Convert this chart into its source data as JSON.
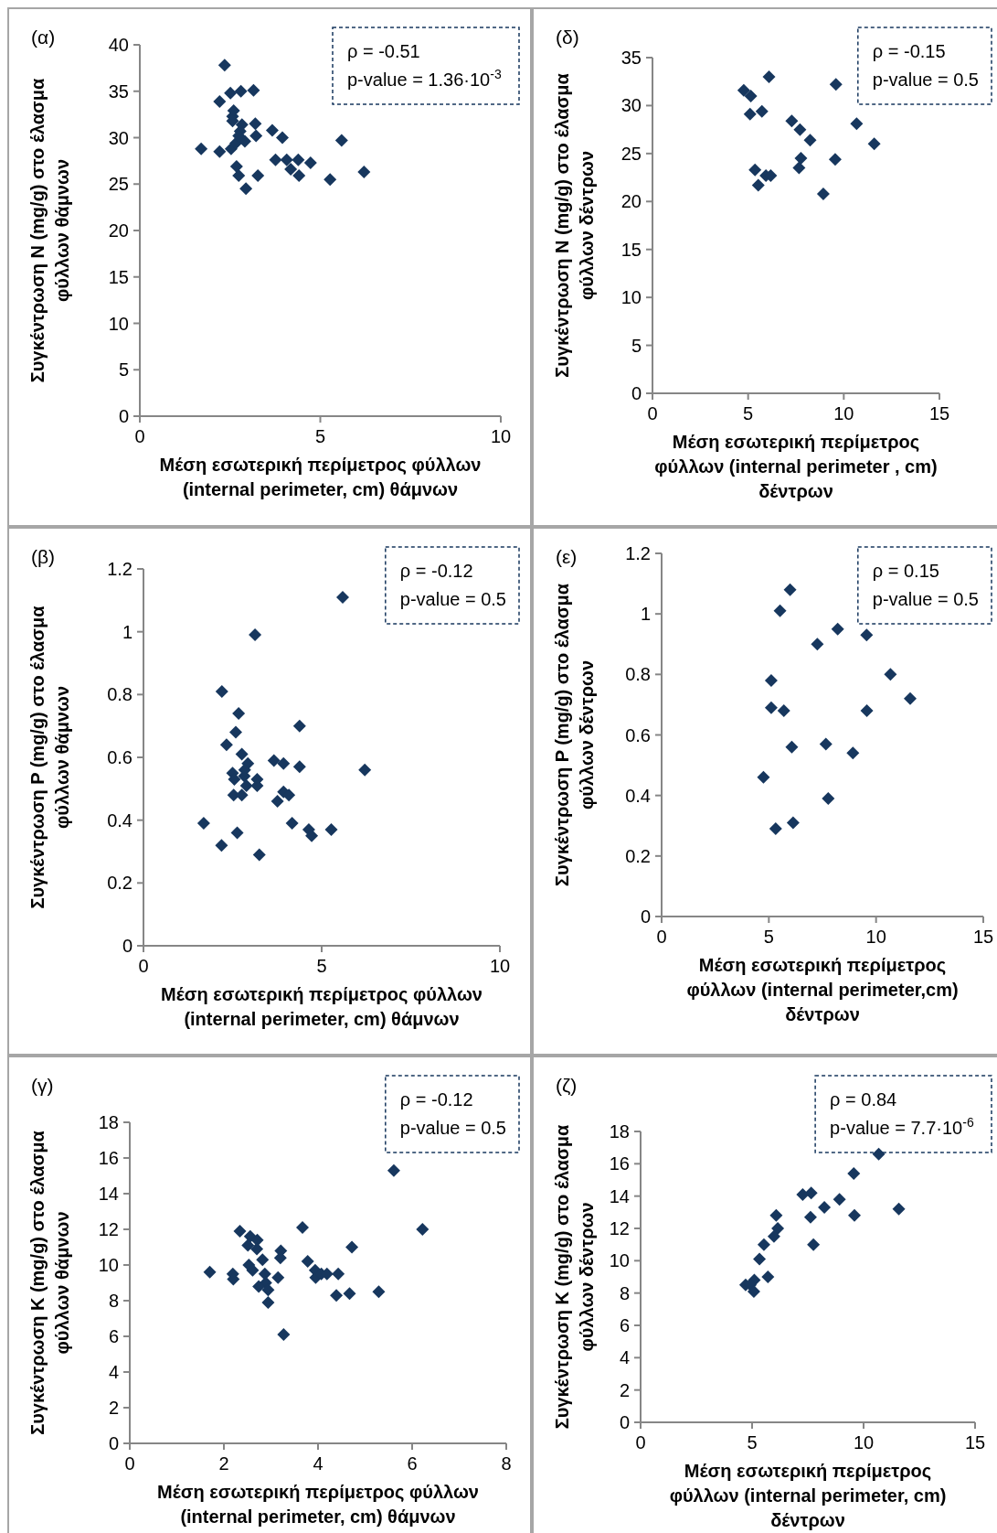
{
  "chart_data": [
    {
      "type": "scatter",
      "title": "(α)",
      "xlabel": "Μέση εσωτερική περίμετρος φύλλων (internal perimeter, cm) θάμνων",
      "ylabel": "Συγκέντρωση N (mg/g) στο έλασμα φύλλων θάμνων",
      "annotations": [
        "ρ = -0.51",
        "p-value = 1.36·10$^{-3}$"
      ],
      "color": "#17375e",
      "marker": "diamond",
      "xlim": [
        0,
        10
      ],
      "ylim": [
        0,
        40
      ],
      "xticks": [
        0,
        5,
        10
      ],
      "yticks": [
        0,
        5,
        10,
        15,
        20,
        25,
        30,
        35,
        40
      ],
      "x": [
        2.35,
        2.21,
        2.51,
        2.8,
        3.15,
        2.6,
        2.57,
        2.57,
        2.83,
        3.2,
        3.22,
        2.78,
        3.67,
        3.95,
        5.59,
        1.7,
        2.21,
        2.53,
        2.66,
        2.91,
        2.74,
        3.76,
        4.07,
        4.39,
        4.18,
        4.41,
        4.73,
        2.68,
        2.74,
        3.27,
        2.94,
        5.27,
        6.21
      ],
      "values": [
        37.8,
        33.9,
        34.8,
        35.0,
        35.1,
        32.9,
        32.3,
        31.8,
        31.4,
        31.5,
        30.2,
        30.7,
        30.8,
        30.0,
        29.7,
        28.8,
        28.5,
        28.8,
        29.4,
        29.6,
        30.2,
        27.6,
        27.6,
        27.6,
        26.6,
        25.9,
        27.3,
        26.9,
        25.9,
        25.9,
        24.5,
        25.5,
        26.3
      ]
    },
    {
      "type": "scatter",
      "title": "(δ)",
      "xlabel": "Μέση εσωτερική περίμετρος φύλλων (internal perimeter , cm) δέντρων",
      "ylabel": "Συγκέντρωση N (mg/g) στο έλασμα φύλλων δέντρων",
      "annotations": [
        "ρ = -0.15",
        "p-value = 0.5"
      ],
      "color": "#17375e",
      "marker": "diamond",
      "xlim": [
        0,
        15
      ],
      "ylim": [
        0,
        35
      ],
      "xticks": [
        0,
        5,
        10,
        15
      ],
      "yticks": [
        0,
        5,
        10,
        15,
        20,
        25,
        30,
        35
      ],
      "x": [
        4.77,
        5.14,
        5.1,
        5.72,
        6.09,
        9.59,
        7.28,
        7.71,
        8.24,
        10.67,
        11.59,
        7.76,
        9.55,
        7.66,
        5.36,
        5.93,
        6.18,
        5.53,
        8.93
      ],
      "values": [
        31.6,
        31.0,
        29.1,
        29.4,
        33.0,
        32.2,
        28.4,
        27.5,
        26.4,
        28.1,
        26.0,
        24.5,
        24.4,
        23.5,
        23.3,
        22.7,
        22.7,
        21.7,
        20.8
      ]
    },
    {
      "type": "scatter",
      "title": "(β)",
      "xlabel": "Μέση εσωτερική περίμετρος φύλλων (internal perimeter, cm) θάμνων",
      "ylabel": "Συγκέντρωση P (mg/g) στο έλασμα φύλλων θάμνων",
      "annotations": [
        "ρ = -0.12",
        "p-value = 0.5"
      ],
      "color": "#17375e",
      "marker": "diamond",
      "xlim": [
        0,
        10
      ],
      "ylim": [
        0,
        1.2
      ],
      "xticks": [
        0,
        5,
        10
      ],
      "yticks": [
        0,
        0.2,
        0.4,
        0.6,
        0.8,
        1,
        1.2
      ],
      "x": [
        5.59,
        3.13,
        2.2,
        2.67,
        2.59,
        2.33,
        2.76,
        4.38,
        2.93,
        3.66,
        3.93,
        4.38,
        6.21,
        2.5,
        2.55,
        2.83,
        2.84,
        3.19,
        3.19,
        2.89,
        2.53,
        2.76,
        3.93,
        4.08,
        3.76,
        1.69,
        4.17,
        2.63,
        4.64,
        4.72,
        5.27,
        2.19,
        3.25
      ],
      "values": [
        1.11,
        0.99,
        0.81,
        0.74,
        0.68,
        0.64,
        0.61,
        0.7,
        0.58,
        0.59,
        0.58,
        0.57,
        0.56,
        0.55,
        0.53,
        0.54,
        0.56,
        0.53,
        0.51,
        0.51,
        0.48,
        0.48,
        0.49,
        0.48,
        0.46,
        0.39,
        0.39,
        0.36,
        0.37,
        0.35,
        0.37,
        0.32,
        0.29
      ]
    },
    {
      "type": "scatter",
      "title": "(ε)",
      "xlabel": "Μέση εσωτερική περίμετρος φύλλων (internal perimeter,cm) δέντρων",
      "ylabel": "Συγκέντρωση P (mg/g) στο έλασμα φύλλων δέντρων",
      "annotations": [
        "ρ = 0.15",
        "p-value = 0.5"
      ],
      "color": "#17375e",
      "marker": "diamond",
      "xlim": [
        0,
        15
      ],
      "ylim": [
        0,
        1.2
      ],
      "xticks": [
        0,
        5,
        10,
        15
      ],
      "yticks": [
        0,
        0.2,
        0.4,
        0.6,
        0.8,
        1,
        1.2
      ],
      "x": [
        5.99,
        5.52,
        7.26,
        8.21,
        9.56,
        10.67,
        11.59,
        9.57,
        5.11,
        5.11,
        5.7,
        6.07,
        7.66,
        8.92,
        4.75,
        7.77,
        5.32,
        6.13
      ],
      "values": [
        1.08,
        1.01,
        0.9,
        0.95,
        0.93,
        0.8,
        0.72,
        0.68,
        0.78,
        0.69,
        0.68,
        0.56,
        0.57,
        0.54,
        0.46,
        0.39,
        0.29,
        0.31
      ]
    },
    {
      "type": "scatter",
      "title": "(γ)",
      "xlabel": "Μέση εσωτερική περίμετρος φύλλων (internal perimeter, cm) θάμνων",
      "ylabel": "Συγκέντρωση K (mg/g) στο έλασμα φύλλων θάμνων",
      "annotations": [
        "ρ = -0.12",
        "p-value = 0.5"
      ],
      "color": "#17375e",
      "marker": "diamond",
      "xlim": [
        0,
        8
      ],
      "ylim": [
        0,
        18
      ],
      "xticks": [
        0,
        2,
        4,
        6,
        8
      ],
      "yticks": [
        0,
        2,
        4,
        6,
        8,
        10,
        12,
        14,
        16,
        18
      ],
      "x": [
        5.61,
        6.22,
        3.67,
        2.34,
        2.56,
        2.71,
        2.51,
        2.7,
        3.21,
        3.2,
        4.72,
        2.82,
        2.53,
        2.61,
        3.78,
        3.94,
        2.87,
        1.7,
        2.19,
        2.2,
        3.15,
        3.95,
        4.07,
        4.19,
        4.43,
        2.89,
        2.74,
        2.94,
        4.39,
        4.67,
        5.29,
        2.94,
        3.27
      ],
      "values": [
        15.3,
        12.0,
        12.1,
        11.9,
        11.6,
        11.4,
        11.1,
        10.9,
        10.8,
        10.4,
        11.0,
        10.3,
        10.0,
        9.7,
        10.2,
        9.7,
        9.5,
        9.6,
        9.5,
        9.2,
        9.3,
        9.3,
        9.5,
        9.5,
        9.5,
        9.0,
        8.8,
        8.6,
        8.3,
        8.4,
        8.5,
        7.9,
        6.1
      ]
    },
    {
      "type": "scatter",
      "title": "(ζ)",
      "xlabel": "Μέση εσωτερική περίμετρος φύλλων (internal perimeter, cm) δέντρων",
      "ylabel": "Συγκέντρωση K (mg/g) στο έλασμα φύλλων δέντρων",
      "annotations": [
        "ρ = 0.84",
        "p-value = 7.7·10$^{-6}$"
      ],
      "color": "#17375e",
      "marker": "diamond",
      "xlim": [
        0,
        15
      ],
      "ylim": [
        0,
        18
      ],
      "xticks": [
        0,
        5,
        10,
        15
      ],
      "yticks": [
        0,
        2,
        4,
        6,
        8,
        10,
        12,
        14,
        16,
        18
      ],
      "x": [
        10.68,
        9.56,
        7.65,
        7.27,
        8.92,
        8.24,
        11.58,
        7.62,
        9.59,
        6.08,
        6.15,
        5.98,
        5.53,
        7.75,
        5.33,
        5.71,
        5.1,
        4.71,
        4.92,
        5.08
      ],
      "values": [
        16.6,
        15.4,
        14.2,
        14.1,
        13.8,
        13.3,
        13.2,
        12.7,
        12.8,
        12.8,
        12.0,
        11.5,
        11.0,
        11.0,
        10.1,
        9.0,
        8.8,
        8.5,
        8.5,
        8.1
      ]
    }
  ]
}
